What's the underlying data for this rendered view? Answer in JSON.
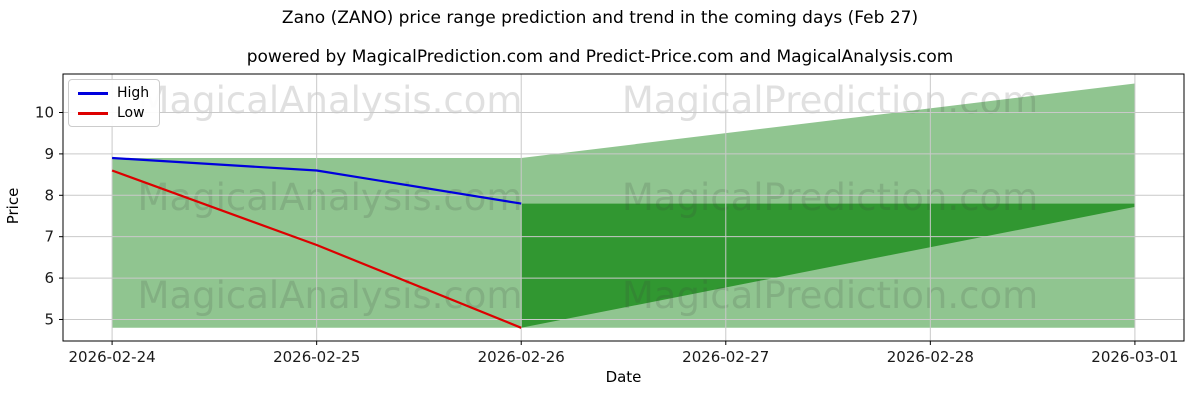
{
  "chart_data": {
    "type": "line",
    "title": "Zano (ZANO) price range prediction and trend in the coming days (Feb 27)",
    "subtitle": "powered by MagicalPrediction.com and Predict-Price.com and MagicalAnalysis.com",
    "xlabel": "Date",
    "ylabel": "Price",
    "categories": [
      "2026-02-24",
      "2026-02-25",
      "2026-02-26",
      "2026-02-27",
      "2026-02-28",
      "2026-03-01"
    ],
    "yticks": [
      5,
      6,
      7,
      8,
      9,
      10
    ],
    "ylim": [
      4.48,
      10.93
    ],
    "xlim": [
      -0.24,
      5.24
    ],
    "grid": true,
    "legend_position": "upper left",
    "series": [
      {
        "name": "High",
        "color": "#0000dd",
        "x_indices": [
          0,
          1,
          2
        ],
        "values": [
          8.9,
          8.6,
          7.8
        ]
      },
      {
        "name": "Low",
        "color": "#dd0000",
        "x_indices": [
          0,
          1,
          2
        ],
        "values": [
          8.6,
          6.8,
          4.8
        ]
      }
    ],
    "bands": [
      {
        "name": "observed-range",
        "x_indices": [
          0,
          2
        ],
        "top": [
          8.9,
          8.9
        ],
        "bottom": [
          4.8,
          4.8
        ],
        "color": "#228B22",
        "opacity": 0.5
      },
      {
        "name": "forecast-range-outer",
        "x_indices": [
          2,
          5
        ],
        "top": [
          8.9,
          10.7
        ],
        "bottom": [
          4.8,
          4.8
        ],
        "color": "#228B22",
        "opacity": 0.5
      },
      {
        "name": "forecast-range-inner",
        "x_indices": [
          2,
          5
        ],
        "top": [
          7.8,
          7.8
        ],
        "bottom": [
          4.8,
          7.72
        ],
        "color": "#008000",
        "opacity": 0.66
      }
    ],
    "colors": {
      "grid": "#c9c9c9",
      "spine": "#000000",
      "tick_label": "#1a1a1a",
      "watermark": "rgba(60,60,60,0.16)"
    }
  },
  "watermarks": {
    "left_text": "MagicalAnalysis.com",
    "right_text": "MagicalPrediction.com"
  }
}
